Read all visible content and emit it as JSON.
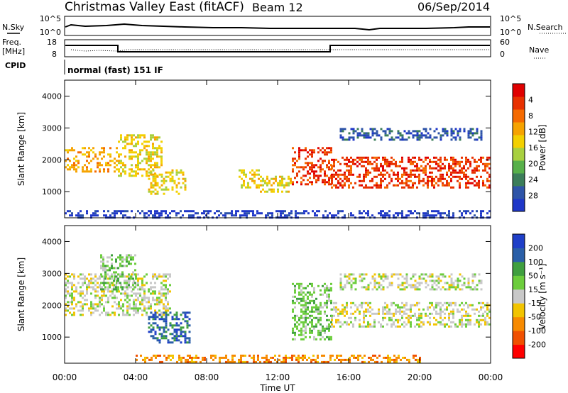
{
  "header": {
    "title": "Christmas Valley East (fitACF)",
    "beam": "Beam 12",
    "date": "06/Sep/2014"
  },
  "top_panels": {
    "nsky_label": "N.Sky",
    "nsky_ticks": [
      "10^5",
      "10^0"
    ],
    "nsearch_label": "N.Search",
    "nsearch_ticks": [
      "10^5",
      "10^0"
    ],
    "freq_label_1": "Freq.",
    "freq_label_2": "[MHz]",
    "freq_ticks": [
      "18",
      "8"
    ],
    "nave_label": "Nave",
    "nave_ticks": [
      "60",
      "0"
    ],
    "cpid_label": "CPID",
    "cpid_value": "normal (fast) 151 IF"
  },
  "colors": {
    "power": [
      "#1f37c8",
      "#2e54a8",
      "#3b7d5a",
      "#57b04a",
      "#a8d040",
      "#f3d000",
      "#f6a300",
      "#f56a00",
      "#e83100",
      "#e00000"
    ],
    "velocity": [
      "#ff0000",
      "#f05000",
      "#f78a00",
      "#f2c400",
      "#c8c8c8",
      "#6ccd3c",
      "#3f9f3f",
      "#2a5fa8",
      "#1f3fc8"
    ]
  },
  "chart_data": [
    {
      "type": "heatmap",
      "name": "power",
      "ylabel": "Slant Range [km]",
      "xlabel": "Time UT",
      "x_ticks": [
        "00:00",
        "04:00",
        "08:00",
        "12:00",
        "16:00",
        "20:00",
        "00:00"
      ],
      "y_ticks": [
        "1000",
        "2000",
        "3000",
        "4000"
      ],
      "ylim": [
        180,
        4500
      ],
      "xlim_hours": [
        0,
        24
      ],
      "colorbar_label": "Power [dB]",
      "colorbar_ticks": [
        "4",
        "8",
        "12",
        "16",
        "20",
        "24",
        "28"
      ],
      "regions": [
        {
          "t0": 0.0,
          "t1": 3.0,
          "r0": 1600,
          "r1": 2400,
          "level": 6
        },
        {
          "t0": 3.0,
          "t1": 5.5,
          "r0": 1500,
          "r1": 2800,
          "level": 5
        },
        {
          "t0": 4.7,
          "t1": 6.8,
          "r0": 900,
          "r1": 1700,
          "level": 5
        },
        {
          "t0": 9.8,
          "t1": 11.0,
          "r0": 1100,
          "r1": 1700,
          "level": 5
        },
        {
          "t0": 11.0,
          "t1": 12.8,
          "r0": 1000,
          "r1": 1500,
          "level": 5
        },
        {
          "t0": 12.8,
          "t1": 15.0,
          "r0": 1200,
          "r1": 2400,
          "level": 8
        },
        {
          "t0": 15.0,
          "t1": 24.0,
          "r0": 1100,
          "r1": 2100,
          "level": 8
        },
        {
          "t0": 15.5,
          "t1": 23.5,
          "r0": 2600,
          "r1": 3000,
          "level": 1
        },
        {
          "t0": 0.0,
          "t1": 24.0,
          "r0": 200,
          "r1": 420,
          "level": 0
        }
      ]
    },
    {
      "type": "heatmap",
      "name": "velocity",
      "ylabel": "Slant Range [km]",
      "xlabel": "Time UT",
      "x_ticks": [
        "00:00",
        "04:00",
        "08:00",
        "12:00",
        "16:00",
        "20:00",
        "00:00"
      ],
      "y_ticks": [
        "1000",
        "2000",
        "3000",
        "4000"
      ],
      "ylim": [
        180,
        4500
      ],
      "xlim_hours": [
        0,
        24
      ],
      "colorbar_label": "Velocity [m s⁻¹]",
      "colorbar_ticks": [
        "200",
        "100",
        "50",
        "15",
        "-15",
        "-50",
        "-100",
        "-200"
      ],
      "regions": [
        {
          "t0": 0.0,
          "t1": 6.0,
          "r0": 1700,
          "r1": 3000,
          "level": 4
        },
        {
          "t0": 2.0,
          "t1": 4.0,
          "r0": 2500,
          "r1": 3600,
          "level": 5
        },
        {
          "t0": 4.7,
          "t1": 7.0,
          "r0": 800,
          "r1": 1800,
          "level": 7
        },
        {
          "t0": 12.8,
          "t1": 15.0,
          "r0": 900,
          "r1": 2700,
          "level": 5
        },
        {
          "t0": 15.0,
          "t1": 24.0,
          "r0": 1300,
          "r1": 2100,
          "level": 4
        },
        {
          "t0": 15.5,
          "t1": 23.5,
          "r0": 2500,
          "r1": 3000,
          "level": 4
        },
        {
          "t0": 4.0,
          "t1": 20.0,
          "r0": 200,
          "r1": 450,
          "level": 2
        }
      ]
    }
  ]
}
